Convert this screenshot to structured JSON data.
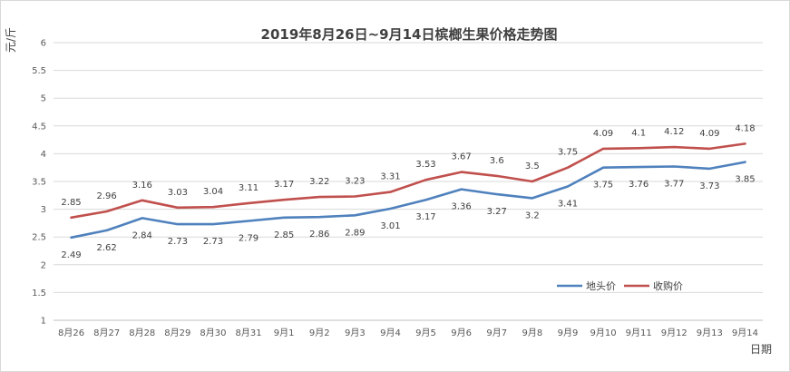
{
  "chart_data": {
    "type": "line",
    "title": "2019年8月26日~9月14日槟榔生果价格走势图",
    "ylabel": "元/斤",
    "xlabel": "日期",
    "ylim": [
      1,
      6
    ],
    "y_ticks": [
      "1",
      "1.5",
      "2",
      "2.5",
      "3",
      "3.5",
      "4",
      "4.5",
      "5",
      "5.5",
      "6"
    ],
    "grid": true,
    "legend_position": "bottom-right-inside",
    "categories": [
      "8月26",
      "8月27",
      "8月28",
      "8月29",
      "8月30",
      "8月31",
      "9月1",
      "9月2",
      "9月3",
      "9月4",
      "9月5",
      "9月6",
      "9月7",
      "9月8",
      "9月9",
      "9月10",
      "9月11",
      "9月12",
      "9月13",
      "9月14"
    ],
    "series": [
      {
        "name": "地头价",
        "color": "#4f81bd",
        "label_position": "below",
        "values": [
          2.49,
          2.62,
          2.84,
          2.73,
          2.73,
          2.79,
          2.85,
          2.86,
          2.89,
          3.01,
          3.17,
          3.36,
          3.27,
          3.2,
          3.41,
          3.75,
          3.76,
          3.77,
          3.73,
          3.85
        ],
        "labels": [
          "2.49",
          "2.62",
          "2.84",
          "2.73",
          "2.73",
          "2.79",
          "2.85",
          "2.86",
          "2.89",
          "3.01",
          "3.17",
          "3.36",
          "3.27",
          "3.2",
          "3.41",
          "3.75",
          "3.76",
          "3.77",
          "3.73",
          "3.85"
        ]
      },
      {
        "name": "收购价",
        "color": "#c0504d",
        "label_position": "above",
        "values": [
          2.85,
          2.96,
          3.16,
          3.03,
          3.04,
          3.11,
          3.17,
          3.22,
          3.23,
          3.31,
          3.53,
          3.67,
          3.6,
          3.5,
          3.75,
          4.09,
          4.1,
          4.12,
          4.09,
          4.18
        ],
        "labels": [
          "2.85",
          "2.96",
          "3.16",
          "3.03",
          "3.04",
          "3.11",
          "3.17",
          "3.22",
          "3.23",
          "3.31",
          "3.53",
          "3.67",
          "3.6",
          "3.5",
          "3.75",
          "4.09",
          "4.1",
          "4.12",
          "4.09",
          "4.18"
        ]
      }
    ]
  }
}
